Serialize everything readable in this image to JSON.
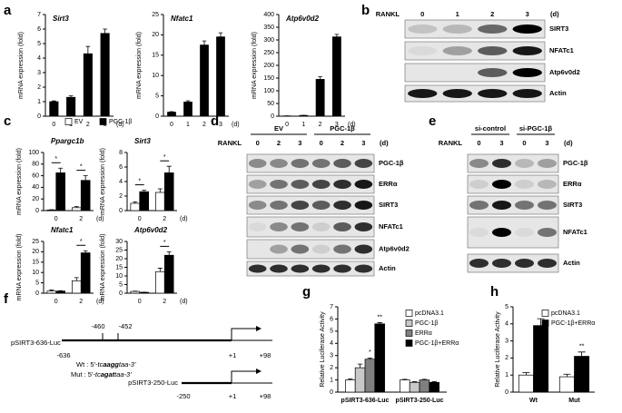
{
  "panels": [
    "a",
    "b",
    "c",
    "d",
    "e",
    "f",
    "g",
    "h"
  ],
  "chart_data": [
    {
      "type": "bar",
      "title": "Sirt3",
      "ylabel": "mRNA expression (fold)",
      "xlabel": "(d)",
      "categories": [
        "0",
        "1",
        "2",
        "3"
      ],
      "values": [
        1,
        1.3,
        4.3,
        5.7
      ],
      "errors": [
        0.05,
        0.1,
        0.5,
        0.3
      ],
      "color": "#000000",
      "ylim": [
        0,
        7
      ],
      "yticks": [
        0,
        1,
        2,
        3,
        4,
        5,
        6,
        7
      ]
    },
    {
      "type": "bar",
      "title": "Nfatc1",
      "ylabel": "mRNA expression (fold)",
      "xlabel": "(d)",
      "categories": [
        "0",
        "1",
        "2",
        "3"
      ],
      "values": [
        1,
        3.5,
        17.5,
        19.5
      ],
      "errors": [
        0.1,
        0.3,
        1,
        1
      ],
      "color": "#000000",
      "ylim": [
        0,
        25
      ],
      "yticks": [
        0,
        5,
        10,
        15,
        20,
        25
      ]
    },
    {
      "type": "bar",
      "title": "Atp6v0d2",
      "ylabel": "mRNA expression (fold)",
      "xlabel": "(d)",
      "categories": [
        "0",
        "1",
        "2",
        "3"
      ],
      "values": [
        1,
        3,
        145,
        312
      ],
      "errors": [
        0.2,
        0.5,
        10,
        10
      ],
      "color": "#000000",
      "ylim": [
        0,
        400
      ],
      "yticks": [
        0,
        50,
        100,
        150,
        200,
        250,
        300,
        350,
        400
      ]
    },
    {
      "type": "bar",
      "title": "Ppargc1b",
      "ylabel": "mRNA expression (fold)",
      "xlabel": "(d)",
      "categories": [
        "0",
        "2"
      ],
      "series": [
        {
          "name": "EV",
          "color": "#ffffff",
          "values": [
            1,
            5
          ],
          "errors": [
            0.5,
            2
          ]
        },
        {
          "name": "PGC-1β",
          "color": "#000000",
          "values": [
            65,
            52
          ],
          "errors": [
            8,
            8
          ]
        }
      ],
      "ylim": [
        0,
        100
      ],
      "yticks": [
        0,
        20,
        40,
        60,
        80,
        100
      ],
      "annotations": [
        "*",
        "*"
      ]
    },
    {
      "type": "bar",
      "title": "Sirt3",
      "ylabel": "mRNA expression (fold)",
      "xlabel": "(d)",
      "categories": [
        "0",
        "2"
      ],
      "series": [
        {
          "color": "#ffffff",
          "values": [
            1,
            2.5
          ],
          "errors": [
            0.2,
            0.5
          ]
        },
        {
          "color": "#000000",
          "values": [
            2.6,
            5.2
          ],
          "errors": [
            0.2,
            0.9
          ]
        }
      ],
      "ylim": [
        0,
        8
      ],
      "yticks": [
        0,
        2,
        4,
        6,
        8
      ],
      "annotations": [
        "*",
        "*"
      ]
    },
    {
      "type": "bar",
      "title": "Nfatc1",
      "ylabel": "mRNA expression (fold)",
      "xlabel": "(d)",
      "categories": [
        "0",
        "2"
      ],
      "series": [
        {
          "color": "#ffffff",
          "values": [
            1,
            6
          ],
          "errors": [
            0.5,
            1.5
          ]
        },
        {
          "color": "#000000",
          "values": [
            1,
            19.5
          ],
          "errors": [
            0.2,
            1
          ]
        }
      ],
      "ylim": [
        0,
        25
      ],
      "yticks": [
        0,
        5,
        10,
        15,
        20,
        25
      ],
      "annotations": [
        "*"
      ]
    },
    {
      "type": "bar",
      "title": "Atp6v0d2",
      "ylabel": "mRNA expression (fold)",
      "xlabel": "(d)",
      "categories": [
        "0",
        "2"
      ],
      "series": [
        {
          "color": "#ffffff",
          "values": [
            1,
            12.5
          ],
          "errors": [
            0.2,
            2
          ]
        },
        {
          "color": "#000000",
          "values": [
            0.5,
            22
          ],
          "errors": [
            0.1,
            2
          ]
        }
      ],
      "ylim": [
        0,
        30
      ],
      "yticks": [
        0,
        5,
        10,
        15,
        20,
        25,
        30
      ],
      "annotations": [
        "*"
      ]
    },
    {
      "type": "bar",
      "ylabel": "Relative Luciferase Activity",
      "categories": [
        "pSIRT3-636-Luc",
        "pSIRT3-250-Luc"
      ],
      "series": [
        {
          "name": "pcDNA3.1",
          "color": "#ffffff",
          "values": [
            1.0,
            1.0
          ],
          "errors": [
            0.1,
            0.05
          ]
        },
        {
          "name": "PGC-1β",
          "color": "#c8c8c8",
          "values": [
            2.0,
            0.8
          ],
          "errors": [
            0.3,
            0.05
          ]
        },
        {
          "name": "ERRα",
          "color": "#7f7f7f",
          "values": [
            2.7,
            1.0
          ],
          "errors": [
            0.1,
            0.05
          ]
        },
        {
          "name": "PGC-1β+ERRα",
          "color": "#000000",
          "values": [
            5.6,
            0.8
          ],
          "errors": [
            0.1,
            0.05
          ]
        }
      ],
      "ylim": [
        0,
        7
      ],
      "yticks": [
        0,
        1,
        2,
        3,
        4,
        5,
        6,
        7
      ],
      "annotations": [
        "*",
        "**"
      ]
    },
    {
      "type": "bar",
      "ylabel": "Relative Luciferase Activity",
      "categories": [
        "Wt",
        "Mut"
      ],
      "series": [
        {
          "name": "pcDNA3.1",
          "color": "#ffffff",
          "values": [
            1.0,
            0.9
          ],
          "errors": [
            0.15,
            0.15
          ]
        },
        {
          "name": "PGC-1β+ERRα",
          "color": "#000000",
          "values": [
            3.9,
            2.1
          ],
          "errors": [
            0.4,
            0.25
          ]
        }
      ],
      "ylim": [
        0,
        5
      ],
      "yticks": [
        0,
        1,
        2,
        3,
        4,
        5
      ],
      "annotations": [
        "**"
      ]
    }
  ],
  "blots": [
    {
      "treatment": "RANKL",
      "lanes": [
        "0",
        "1",
        "2",
        "3"
      ],
      "unit": "(d)",
      "rows": [
        "SIRT3",
        "NFATc1",
        "Atp6v0d2",
        "Actin"
      ]
    },
    {
      "groups": [
        "EV",
        "PGC-1β"
      ],
      "treatment": "RANKL",
      "lanes": [
        "0",
        "2",
        "3",
        "0",
        "2",
        "3"
      ],
      "unit": "(d)",
      "rows": [
        "PGC-1β",
        "ERRα",
        "SIRT3",
        "NFATc1",
        "Atp6v0d2",
        "Actin"
      ]
    },
    {
      "groups": [
        "si-control",
        "si-PGC-1β"
      ],
      "treatment": "RANKL",
      "lanes": [
        "0",
        "3",
        "0",
        "3"
      ],
      "unit": "(d)",
      "rows": [
        "PGC-1β",
        "ERRα",
        "SIRT3",
        "NFATc1",
        "Actin"
      ]
    }
  ],
  "diagram": {
    "constructs": [
      {
        "name": "pSIRT3-636-Luc",
        "start": "-636",
        "tss": "+1",
        "end": "+98"
      },
      {
        "name": "pSIRT3-250-Luc",
        "start": "-250",
        "tss": "+1",
        "end": "+98"
      }
    ],
    "sites": [
      "-460",
      "-452"
    ],
    "sequences": [
      [
        "Wt : 5'-",
        "tc",
        "aagg",
        "taa-3'"
      ],
      [
        "Mut : 5'-",
        "tc",
        "agat",
        "taa-3'"
      ]
    ]
  }
}
